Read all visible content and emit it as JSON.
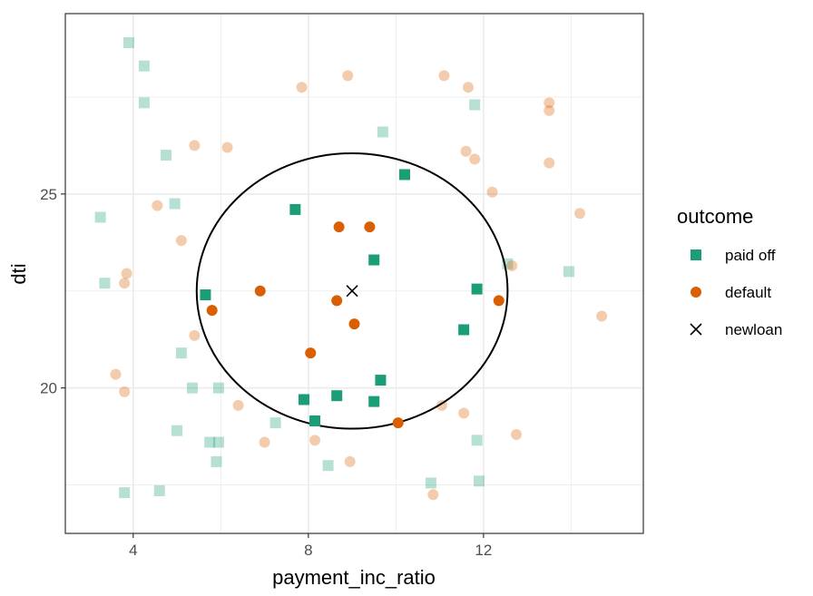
{
  "chart_data": {
    "type": "scatter",
    "xlabel": "payment_inc_ratio",
    "ylabel": "dti",
    "xlim": [
      2.45,
      15.65
    ],
    "ylim": [
      16.25,
      29.65
    ],
    "x_ticks": [
      4,
      8,
      12
    ],
    "x_tick_labels": [
      "4",
      "8",
      "12"
    ],
    "y_ticks": [
      20,
      25
    ],
    "y_tick_labels": [
      "20",
      "25"
    ],
    "grid": true,
    "legend": {
      "title": "outcome",
      "position": "right",
      "entries": [
        {
          "label": "paid off",
          "shape": "square",
          "color": "#1b9e77"
        },
        {
          "label": "default",
          "shape": "circle",
          "color": "#d95f02"
        },
        {
          "label": "newloan",
          "shape": "cross",
          "color": "#000000"
        }
      ]
    },
    "circle": {
      "center": [
        9.0,
        22.5
      ],
      "rx": 3.55,
      "ry": 3.55,
      "color": "#000000"
    },
    "series": [
      {
        "name": "paid off",
        "shape": "square",
        "color": "#1b9e77",
        "highlighted": [
          {
            "x": 7.7,
            "y": 24.6
          },
          {
            "x": 10.2,
            "y": 25.5
          },
          {
            "x": 9.5,
            "y": 23.3
          },
          {
            "x": 5.65,
            "y": 22.4
          },
          {
            "x": 11.85,
            "y": 22.55
          },
          {
            "x": 11.55,
            "y": 21.5
          },
          {
            "x": 9.65,
            "y": 20.2
          },
          {
            "x": 7.9,
            "y": 19.7
          },
          {
            "x": 8.65,
            "y": 19.8
          },
          {
            "x": 9.5,
            "y": 19.65
          },
          {
            "x": 8.15,
            "y": 19.15
          }
        ],
        "faded": [
          {
            "x": 3.9,
            "y": 28.9
          },
          {
            "x": 4.25,
            "y": 28.3
          },
          {
            "x": 4.25,
            "y": 27.35
          },
          {
            "x": 11.8,
            "y": 27.3
          },
          {
            "x": 9.7,
            "y": 26.6
          },
          {
            "x": 4.75,
            "y": 26.0
          },
          {
            "x": 3.25,
            "y": 24.4
          },
          {
            "x": 4.95,
            "y": 24.75
          },
          {
            "x": 3.35,
            "y": 22.7
          },
          {
            "x": 12.55,
            "y": 23.2
          },
          {
            "x": 13.95,
            "y": 23.0
          },
          {
            "x": 5.1,
            "y": 20.9
          },
          {
            "x": 5.35,
            "y": 20.0
          },
          {
            "x": 5.95,
            "y": 20.0
          },
          {
            "x": 7.25,
            "y": 19.1
          },
          {
            "x": 5.0,
            "y": 18.9
          },
          {
            "x": 5.75,
            "y": 18.6
          },
          {
            "x": 5.95,
            "y": 18.6
          },
          {
            "x": 5.9,
            "y": 18.1
          },
          {
            "x": 8.45,
            "y": 18.0
          },
          {
            "x": 11.85,
            "y": 18.65
          },
          {
            "x": 3.8,
            "y": 17.3
          },
          {
            "x": 4.6,
            "y": 17.35
          },
          {
            "x": 10.8,
            "y": 17.55
          },
          {
            "x": 11.9,
            "y": 17.6
          }
        ]
      },
      {
        "name": "default",
        "shape": "circle",
        "color": "#d95f02",
        "highlighted": [
          {
            "x": 8.7,
            "y": 24.15
          },
          {
            "x": 9.4,
            "y": 24.15
          },
          {
            "x": 6.9,
            "y": 22.5
          },
          {
            "x": 5.8,
            "y": 22.0
          },
          {
            "x": 8.65,
            "y": 22.25
          },
          {
            "x": 9.05,
            "y": 21.65
          },
          {
            "x": 12.35,
            "y": 22.25
          },
          {
            "x": 8.05,
            "y": 20.9
          },
          {
            "x": 10.05,
            "y": 19.1
          }
        ],
        "faded": [
          {
            "x": 8.9,
            "y": 28.05
          },
          {
            "x": 11.1,
            "y": 28.05
          },
          {
            "x": 7.85,
            "y": 27.75
          },
          {
            "x": 11.65,
            "y": 27.75
          },
          {
            "x": 13.5,
            "y": 27.35
          },
          {
            "x": 13.5,
            "y": 27.15
          },
          {
            "x": 5.4,
            "y": 26.25
          },
          {
            "x": 6.15,
            "y": 26.2
          },
          {
            "x": 11.6,
            "y": 26.1
          },
          {
            "x": 11.8,
            "y": 25.9
          },
          {
            "x": 13.5,
            "y": 25.8
          },
          {
            "x": 12.2,
            "y": 25.05
          },
          {
            "x": 4.55,
            "y": 24.7
          },
          {
            "x": 14.2,
            "y": 24.5
          },
          {
            "x": 5.1,
            "y": 23.8
          },
          {
            "x": 12.65,
            "y": 23.15
          },
          {
            "x": 3.85,
            "y": 22.95
          },
          {
            "x": 3.8,
            "y": 22.7
          },
          {
            "x": 14.7,
            "y": 21.85
          },
          {
            "x": 5.4,
            "y": 21.35
          },
          {
            "x": 3.6,
            "y": 20.35
          },
          {
            "x": 3.8,
            "y": 19.9
          },
          {
            "x": 6.4,
            "y": 19.55
          },
          {
            "x": 11.05,
            "y": 19.55
          },
          {
            "x": 11.55,
            "y": 19.35
          },
          {
            "x": 12.75,
            "y": 18.8
          },
          {
            "x": 7.0,
            "y": 18.6
          },
          {
            "x": 8.15,
            "y": 18.65
          },
          {
            "x": 8.95,
            "y": 18.1
          },
          {
            "x": 10.85,
            "y": 17.25
          }
        ]
      },
      {
        "name": "newloan",
        "shape": "cross",
        "color": "#000000",
        "points": [
          {
            "x": 9.0,
            "y": 22.5
          }
        ]
      }
    ]
  }
}
